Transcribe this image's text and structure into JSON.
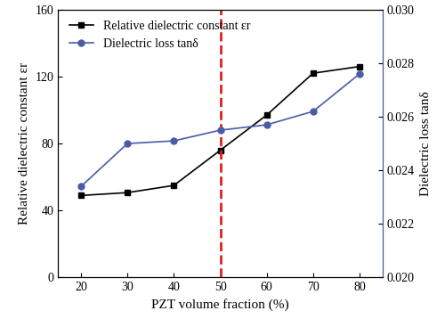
{
  "chart_data": {
    "type": "line",
    "xlabel": "PZT volume fraction (%)",
    "ylabel": "Relative dielectric constant εr",
    "y2label": "Dielectric loss tanδ",
    "x": [
      20,
      30,
      40,
      50,
      60,
      70,
      80
    ],
    "series": [
      {
        "name": "Relative dielectric constant εr",
        "color": "#000000",
        "marker": "square",
        "line_style": "solid",
        "values": [
          49,
          50.7,
          55,
          76,
          97,
          122,
          126
        ]
      },
      {
        "name": "Dielectric loss tanδ",
        "color": "#4a5ba8",
        "marker": "circle",
        "line_style": "solid",
        "axis": "y2",
        "values": [
          0.0234,
          0.025,
          0.0251,
          0.0255,
          0.0257,
          0.0262,
          0.0276
        ]
      }
    ],
    "reference_line": {
      "x": 50,
      "color": "#e02020",
      "line_style": "dashed"
    },
    "xlim": [
      15,
      85
    ],
    "xticks": [
      20,
      30,
      40,
      50,
      60,
      70,
      80
    ],
    "ylim": [
      0,
      160
    ],
    "yticks": [
      0,
      40,
      80,
      120,
      160
    ],
    "y2lim": [
      0.02,
      0.03
    ],
    "y2ticks": [
      {
        "value": 0.02,
        "label": "0.020"
      },
      0.022,
      0.024,
      0.026,
      0.028,
      {
        "value": 0.03,
        "label": "0.030"
      }
    ],
    "legend": "upper left",
    "grid": false
  }
}
